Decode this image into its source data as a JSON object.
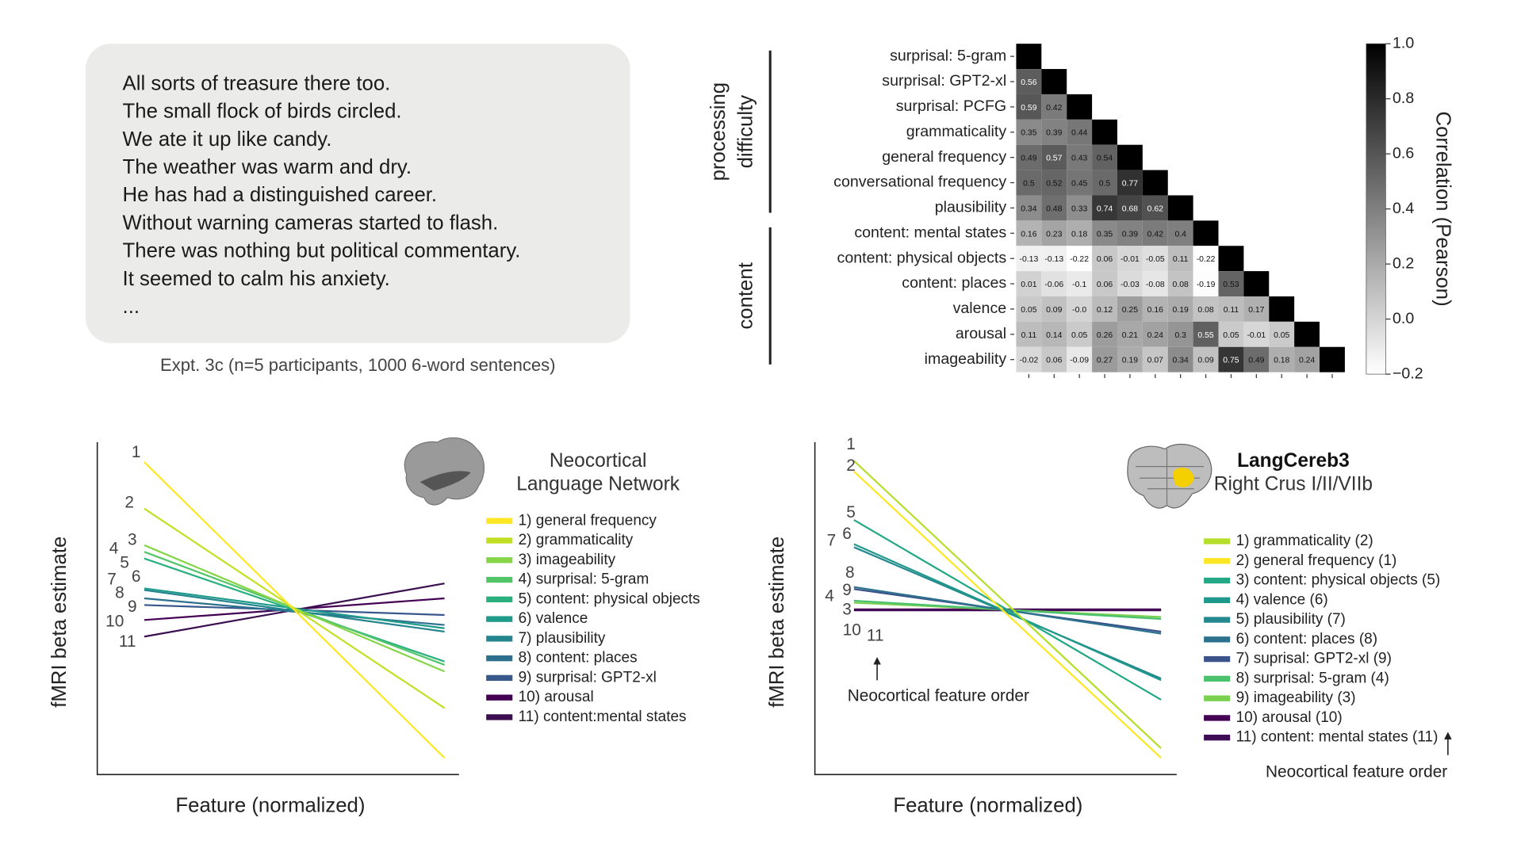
{
  "sentences_panel": {
    "sentences": [
      "All sorts of treasure there too.",
      "The small flock of birds circled.",
      "We ate it up like candy.",
      "The weather was warm and dry.",
      "He has had a distinguished career.",
      "Without warning cameras started to flash.",
      "There was nothing but political commentary.",
      "It seemed to calm his anxiety.",
      "..."
    ],
    "caption": "Expt. 3c (n=5 participants, 1000 6-word sentences)"
  },
  "chart_data": [
    {
      "type": "heatmap",
      "rows": [
        "surprisal: 5-gram",
        "surprisal: GPT2-xl",
        "surprisal: PCFG",
        "grammaticality",
        "general frequency",
        "conversational frequency",
        "plausibility",
        "content: mental states",
        "content: physical objects",
        "content: places",
        "valence",
        "arousal",
        "imageability"
      ],
      "values": [
        [],
        [
          0.56
        ],
        [
          0.59,
          0.42
        ],
        [
          0.35,
          0.39,
          0.44
        ],
        [
          0.49,
          0.57,
          0.43,
          0.54
        ],
        [
          0.5,
          0.52,
          0.45,
          0.5,
          0.77
        ],
        [
          0.34,
          0.48,
          0.33,
          0.74,
          0.68,
          0.62
        ],
        [
          0.16,
          0.23,
          0.18,
          0.35,
          0.39,
          0.42,
          0.4
        ],
        [
          -0.13,
          -0.13,
          -0.22,
          0.06,
          -0.01,
          -0.05,
          0.11,
          -0.22
        ],
        [
          0.01,
          -0.06,
          -0.1,
          0.06,
          -0.03,
          -0.08,
          0.08,
          -0.19,
          0.53
        ],
        [
          0.05,
          0.09,
          0,
          0.12,
          0.25,
          0.16,
          0.19,
          0.08,
          0.11,
          0.17
        ],
        [
          0.11,
          0.14,
          0.05,
          0.26,
          0.21,
          0.24,
          0.3,
          0.55,
          0.05,
          -0.01,
          0.05
        ],
        [
          -0.02,
          0.06,
          -0.09,
          0.27,
          0.19,
          0.07,
          0.34,
          0.09,
          0.75,
          0.49,
          0.18,
          0.24
        ]
      ],
      "value_labels": [
        [],
        [
          "0.56"
        ],
        [
          "0.59",
          "0.42"
        ],
        [
          "0.35",
          "0.39",
          "0.44"
        ],
        [
          "0.49",
          "0.57",
          "0.43",
          "0.54"
        ],
        [
          "0.5",
          "0.52",
          "0.45",
          "0.5",
          "0.77"
        ],
        [
          "0.34",
          "0.48",
          "0.33",
          "0.74",
          "0.68",
          "0.62"
        ],
        [
          "0.16",
          "0.23",
          "0.18",
          "0.35",
          "0.39",
          "0.42",
          "0.4"
        ],
        [
          "-0.13",
          "-0.13",
          "-0.22",
          "0.06",
          "-0.01",
          "-0.05",
          "0.11",
          "-0.22"
        ],
        [
          "0.01",
          "-0.06",
          "-0.1",
          "0.06",
          "-0.03",
          "-0.08",
          "0.08",
          "-0.19",
          "0.53"
        ],
        [
          "0.05",
          "0.09",
          "-0.0",
          "0.12",
          "0.25",
          "0.16",
          "0.19",
          "0.08",
          "0.11",
          "0.17"
        ],
        [
          "0.11",
          "0.14",
          "0.05",
          "0.26",
          "0.21",
          "0.24",
          "0.3",
          "0.55",
          "0.05",
          "-0.01",
          "0.05"
        ],
        [
          "-0.02",
          "0.06",
          "-0.09",
          "0.27",
          "0.19",
          "0.07",
          "0.34",
          "0.09",
          "0.75",
          "0.49",
          "0.18",
          "0.24"
        ]
      ],
      "diagonal_value": 1,
      "colormap": "gray",
      "clim": [
        -0.2,
        1
      ],
      "colorbar_ticks": [
        {
          "value": 1,
          "label": "1.0"
        },
        0.8,
        0.6,
        0.4,
        0.2,
        {
          "value": 0,
          "label": "0.0"
        },
        {
          "value": -0.2,
          "label": "−0.2"
        }
      ],
      "colorbar_label": "Correlation (Pearson)",
      "groups": [
        {
          "label": [
            "processing",
            "difficulty"
          ],
          "rows": [
            0,
            6
          ]
        },
        {
          "label": [
            "content"
          ],
          "rows": [
            7,
            12
          ]
        }
      ]
    },
    {
      "type": "line",
      "title": [
        "Neocortical",
        "Language Network"
      ],
      "xlabel": "Feature (normalized)",
      "ylabel": "fMRI beta estimate",
      "x": [
        0.13,
        0.96
      ],
      "xlim": [
        0,
        1
      ],
      "ylim": [
        0,
        1
      ],
      "series": [
        {
          "name": "1) general frequency",
          "id": 1,
          "color": "#fde725",
          "values": [
            0.94,
            0.05
          ]
        },
        {
          "name": "2) grammaticality",
          "id": 2,
          "color": "#c2df23",
          "values": [
            0.8,
            0.2
          ]
        },
        {
          "name": "3) imageability",
          "id": 3,
          "color": "#86d549",
          "values": [
            0.69,
            0.31
          ]
        },
        {
          "name": "4) surprisal: 5-gram",
          "id": 4,
          "color": "#52c569",
          "values": [
            0.67,
            0.33
          ]
        },
        {
          "name": "5) content: physical objects",
          "id": 5,
          "color": "#2ab07f",
          "values": [
            0.65,
            0.34
          ]
        },
        {
          "name": "6) valence",
          "id": 6,
          "color": "#1e9b8a",
          "values": [
            0.56,
            0.44
          ]
        },
        {
          "name": "7) plausibility",
          "id": 7,
          "color": "#25858e",
          "values": [
            0.555,
            0.43
          ]
        },
        {
          "name": "8) content: places",
          "id": 8,
          "color": "#2d708e",
          "values": [
            0.53,
            0.45
          ]
        },
        {
          "name": "9) surprisal: GPT2-xl",
          "id": 9,
          "color": "#38588c",
          "values": [
            0.51,
            0.48
          ]
        },
        {
          "name": "10) arousal",
          "id": 10,
          "color": "#440154",
          "values": [
            0.465,
            0.53
          ]
        },
        {
          "name": "11) content:mental states",
          "id": 11,
          "color": "#3b0f50",
          "values": [
            0.415,
            0.575
          ]
        }
      ]
    },
    {
      "type": "line",
      "title": "LangCereb3",
      "subtitle": "Right Crus I/II/VIIb",
      "xlabel": "Feature (normalized)",
      "ylabel": "fMRI beta estimate",
      "annotations": [
        "Neocortical feature order",
        "Neocortical feature order"
      ],
      "x": [
        0.108,
        0.957
      ],
      "xlim": [
        0,
        1
      ],
      "ylim": [
        0,
        1
      ],
      "series": [
        {
          "name": "1) grammaticality (2)",
          "id": 2,
          "color": "#b5de2b",
          "values": [
            0.944,
            0.079
          ]
        },
        {
          "name": "2) general frequency (1)",
          "id": 1,
          "color": "#fde725",
          "values": [
            0.912,
            0.05
          ]
        },
        {
          "name": "3) content: physical objects (5)",
          "id": 5,
          "color": "#22a884",
          "values": [
            0.766,
            0.225
          ]
        },
        {
          "name": "4) valence (6)",
          "id": 6,
          "color": "#1f988b",
          "values": [
            0.693,
            0.284
          ]
        },
        {
          "name": "5) plausibility (7)",
          "id": 7,
          "color": "#23898e",
          "values": [
            0.684,
            0.289
          ]
        },
        {
          "name": "6) content: places (8)",
          "id": 8,
          "color": "#2c728e",
          "values": [
            0.564,
            0.424
          ]
        },
        {
          "name": "7) suprisal: GPT2-xl (9)",
          "id": 9,
          "color": "#3b528b",
          "values": [
            0.558,
            0.43
          ]
        },
        {
          "name": "8) surprisal: 5-gram (4)",
          "id": 4,
          "color": "#4ac16d",
          "values": [
            0.523,
            0.468
          ]
        },
        {
          "name": "9) imageability (3)",
          "id": 3,
          "color": "#7ad151",
          "values": [
            0.517,
            0.474
          ]
        },
        {
          "name": "10) arousal (10)",
          "id": 10,
          "color": "#440154",
          "values": [
            0.497,
            0.497
          ]
        },
        {
          "name": "11) content: mental states (11)",
          "id": 11,
          "color": "#3e0d55",
          "values": [
            0.494,
            0.494
          ]
        }
      ]
    }
  ]
}
